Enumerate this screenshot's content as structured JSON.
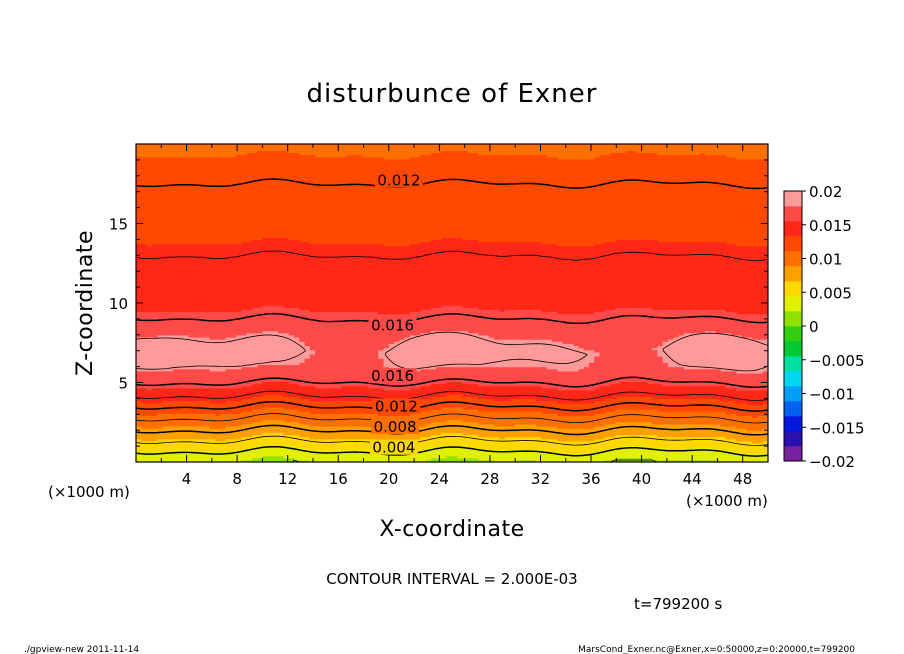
{
  "chart_data": {
    "type": "heatmap",
    "title": "disturbunce of Exner",
    "xlabel": "X-coordinate",
    "ylabel": "Z-coordinate",
    "x_unit_left": "(×1000 m)",
    "x_unit_right": "(×1000 m)",
    "xlim": [
      0,
      50
    ],
    "ylim": [
      0,
      20
    ],
    "x_ticks": [
      4,
      8,
      12,
      16,
      20,
      24,
      28,
      32,
      36,
      40,
      44,
      48
    ],
    "x_tick_labels": [
      "4",
      "8",
      "12",
      "16",
      "20",
      "24",
      "28",
      "32",
      "36",
      "40",
      "44",
      "48"
    ],
    "y_ticks": [
      5,
      10,
      15
    ],
    "y_tick_labels": [
      "5",
      "10",
      "15"
    ],
    "contour_interval": 0.002,
    "contour_interval_label": "CONTOUR INTERVAL = 2.000E-03",
    "time_label": "t=799200 s",
    "profile": {
      "z": [
        0,
        0.5,
        1,
        1.5,
        2,
        2.5,
        3,
        3.5,
        4,
        4.5,
        5,
        5.5,
        6,
        7,
        8,
        9,
        10,
        11,
        12,
        13,
        14,
        15,
        16,
        17,
        18,
        19,
        20
      ],
      "value": [
        0.002,
        0.0035,
        0.005,
        0.0065,
        0.008,
        0.0093,
        0.0107,
        0.012,
        0.0135,
        0.015,
        0.016,
        0.0168,
        0.0178,
        0.0183,
        0.0176,
        0.016,
        0.0152,
        0.0146,
        0.0142,
        0.014,
        0.0132,
        0.0126,
        0.0122,
        0.0121,
        0.0119,
        0.0113,
        0.0107
      ]
    },
    "contour_labels": [
      {
        "text": "0.012",
        "x": 20.8,
        "z": 17.7
      },
      {
        "text": "0.016",
        "x": 20.3,
        "z": 8.6
      },
      {
        "text": "0.016",
        "x": 20.3,
        "z": 5.4
      },
      {
        "text": "0.012",
        "x": 20.6,
        "z": 3.5
      },
      {
        "text": "0.008",
        "x": 20.5,
        "z": 2.2
      },
      {
        "text": "0.004",
        "x": 20.4,
        "z": 0.9
      }
    ],
    "labeled_contour_levels": [
      0.012,
      0.016,
      0.016,
      0.012,
      0.008,
      0.004
    ],
    "colorbar": {
      "min": -0.02,
      "max": 0.02,
      "tick_values": [
        0.02,
        0.015,
        0.01,
        0.005,
        0,
        -0.005,
        -0.01,
        -0.015,
        -0.02
      ],
      "tick_labels": [
        "0.02",
        "0.015",
        "0.01",
        "0.005",
        "0",
        "−0.005",
        "−0.01",
        "−0.015",
        "−0.02"
      ],
      "colors": [
        "#7a1fa0",
        "#2a10b0",
        "#0018e0",
        "#0060f0",
        "#00a0f8",
        "#00d8f0",
        "#00e0a0",
        "#00c832",
        "#30d010",
        "#90e000",
        "#e0f000",
        "#ffd800",
        "#ffa000",
        "#ff7000",
        "#ff4800",
        "#ff2818",
        "#ff4a4a",
        "#ff9a9a"
      ]
    }
  },
  "footer": {
    "left": "./gpview-new   2011-11-14",
    "right": "MarsCond_Exner.nc@Exner,x=0:50000,z=0:20000,t=799200"
  }
}
